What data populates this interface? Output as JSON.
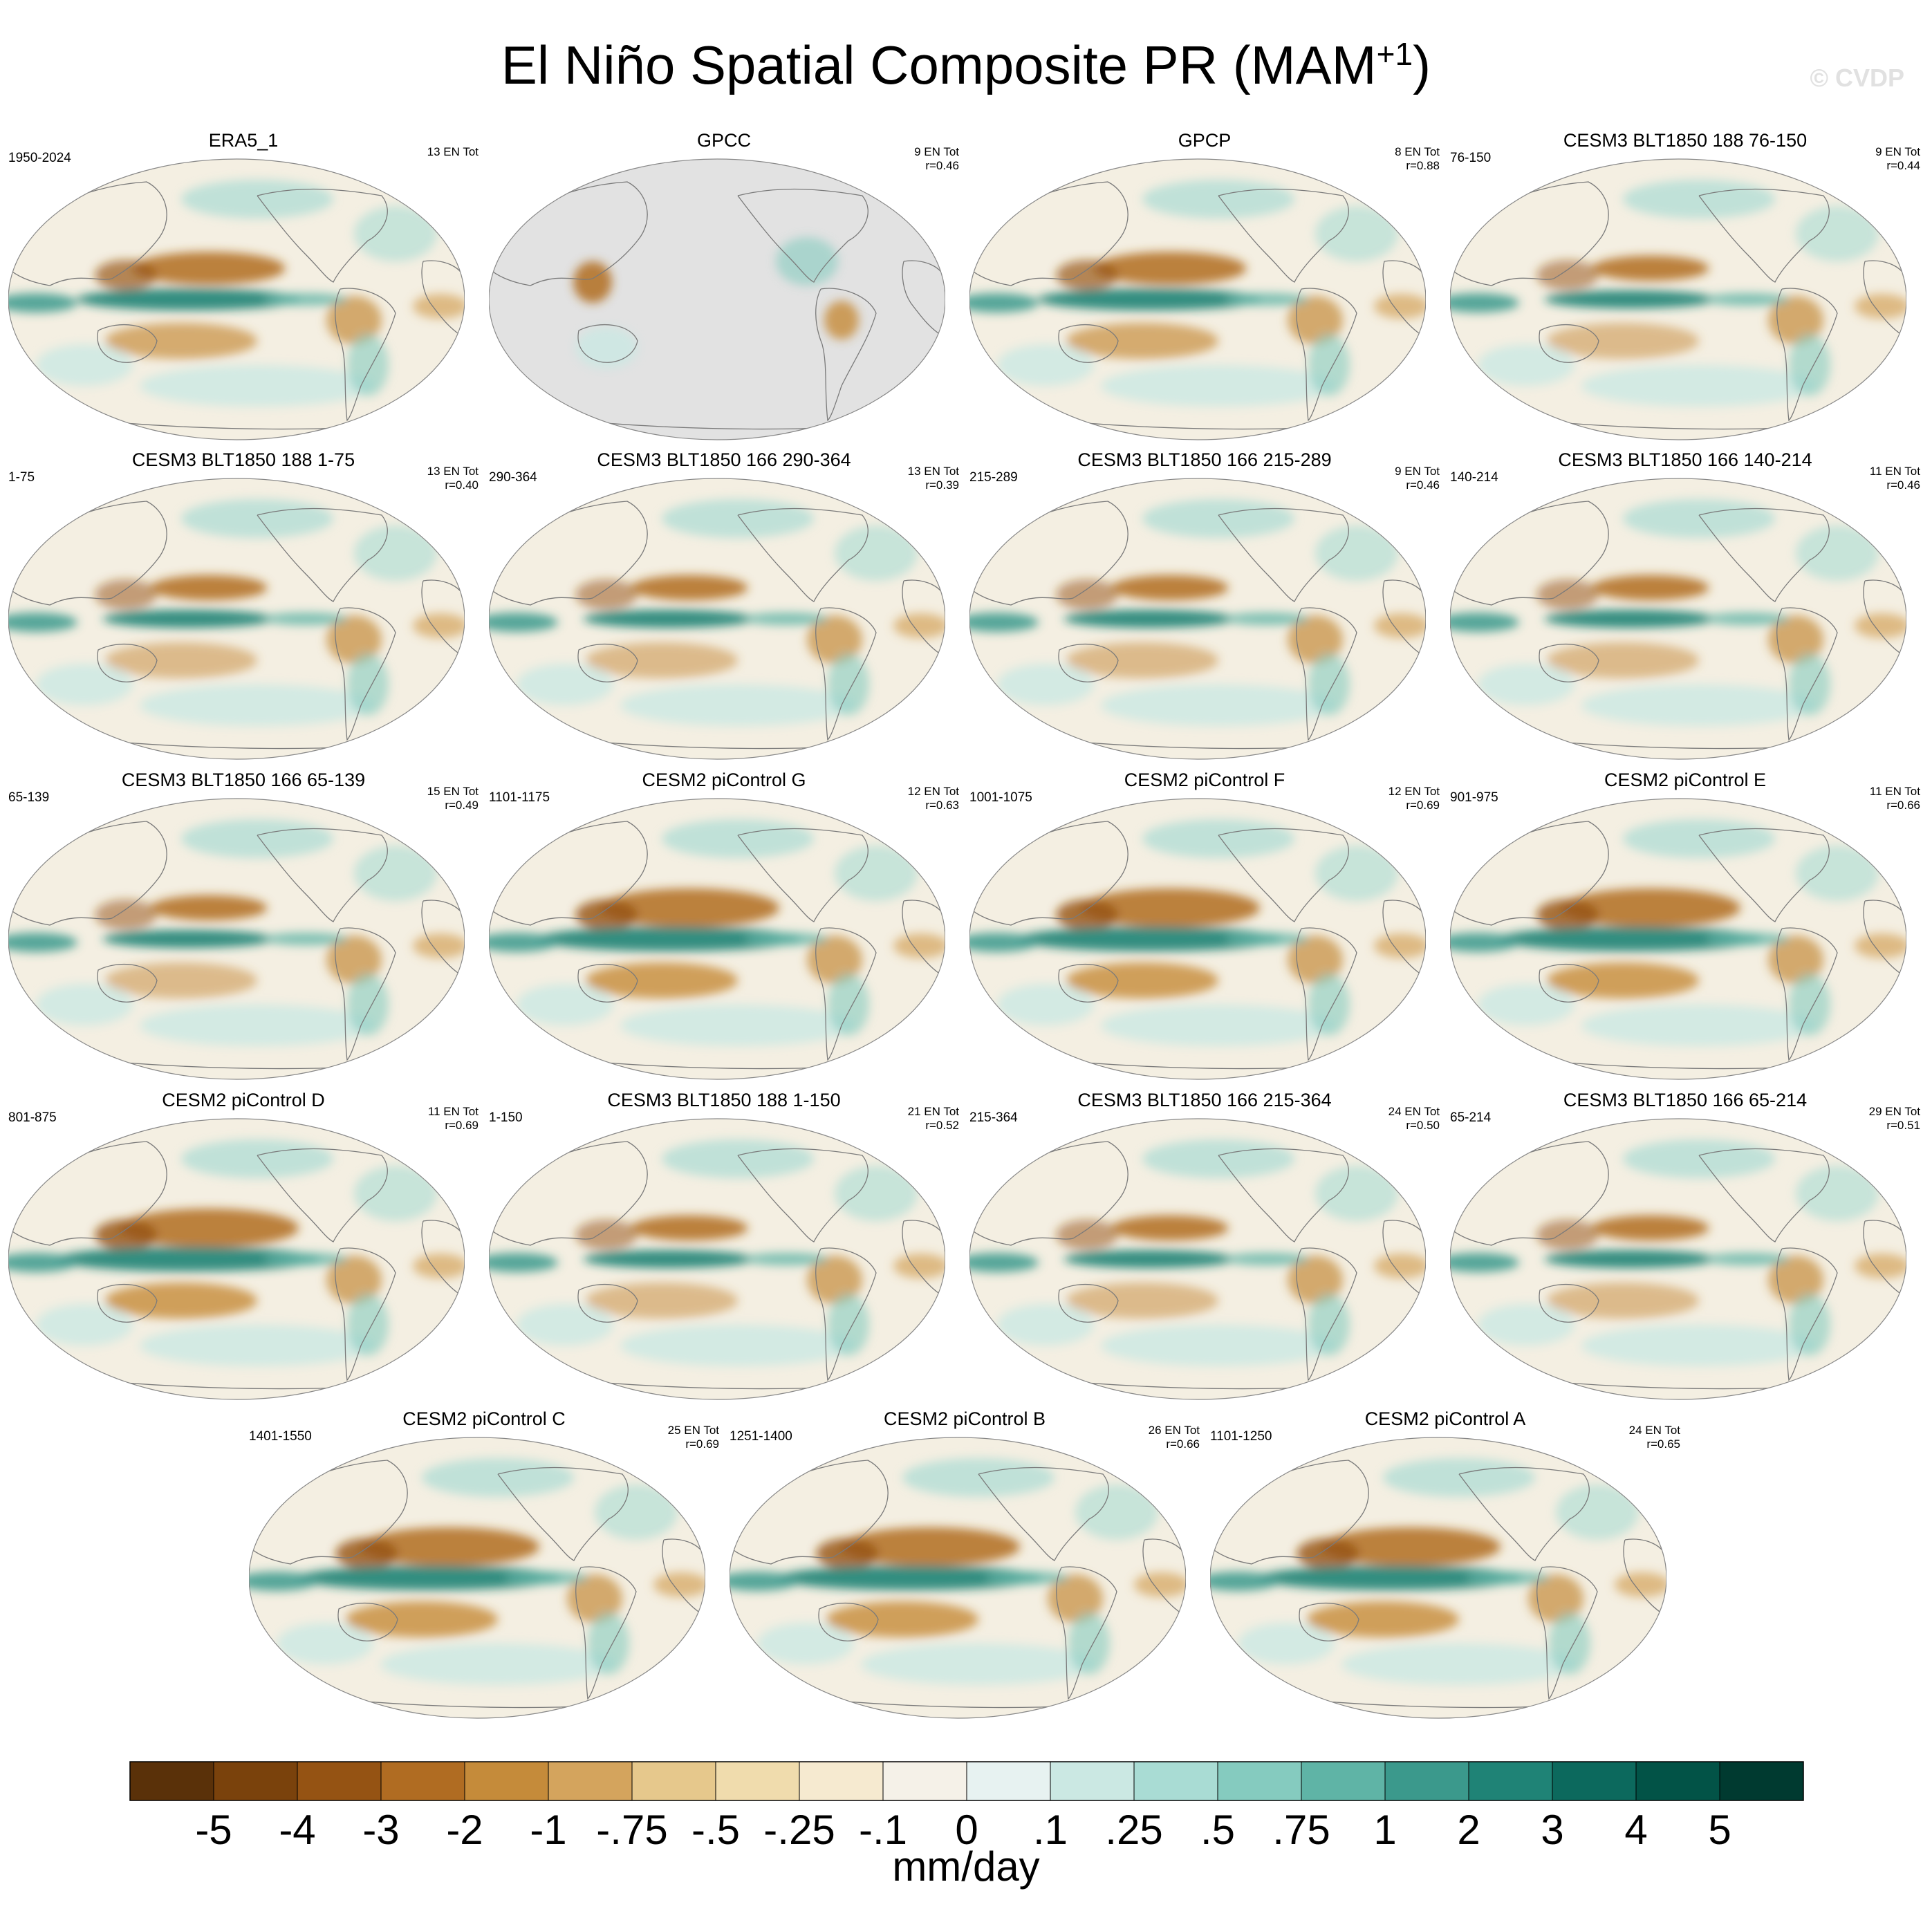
{
  "title": "El Niño Spatial Composite PR (MAM",
  "title_sup": "+1",
  "title_close": ")",
  "watermark": "© CVDP",
  "colors": {
    "map_ocean_base": "#f4efe2",
    "land_mask_gray": "#e2e2e2",
    "coast": "#7a7a7a",
    "wet": "#3e9b8f",
    "dry": "#b8803c"
  },
  "chart_data": {
    "type": "heatmap",
    "variable": "PR",
    "season": "MAM+1",
    "projection": "Robinson (Pacific-centered)",
    "panels": [
      {
        "title": "ERA5_1",
        "years": "1950-2024",
        "n_events": "13 EN Tot",
        "pattern_corr": "",
        "style": "obs"
      },
      {
        "title": "GPCC",
        "years": "",
        "n_events": "9 EN Tot",
        "pattern_corr": "r=0.46",
        "style": "land"
      },
      {
        "title": "GPCP",
        "years": "",
        "n_events": "8 EN Tot",
        "pattern_corr": "r=0.88",
        "style": "obs"
      },
      {
        "title": "CESM3 BLT1850 188 76-150",
        "years": "76-150",
        "n_events": "9 EN Tot",
        "pattern_corr": "r=0.44",
        "style": "weak"
      },
      {
        "title": "CESM3 BLT1850 188 1-75",
        "years": "1-75",
        "n_events": "13 EN Tot",
        "pattern_corr": "r=0.40",
        "style": "weak"
      },
      {
        "title": "CESM3 BLT1850 166 290-364",
        "years": "290-364",
        "n_events": "13 EN Tot",
        "pattern_corr": "r=0.39",
        "style": "weak"
      },
      {
        "title": "CESM3 BLT1850 166 215-289",
        "years": "215-289",
        "n_events": "9 EN Tot",
        "pattern_corr": "r=0.46",
        "style": "weak"
      },
      {
        "title": "CESM3 BLT1850 166 140-214",
        "years": "140-214",
        "n_events": "11 EN Tot",
        "pattern_corr": "r=0.46",
        "style": "weak"
      },
      {
        "title": "CESM3 BLT1850 166 65-139",
        "years": "65-139",
        "n_events": "15 EN Tot",
        "pattern_corr": "r=0.49",
        "style": "weak"
      },
      {
        "title": "CESM2 piControl G",
        "years": "1101-1175",
        "n_events": "12 EN Tot",
        "pattern_corr": "r=0.63",
        "style": "strong"
      },
      {
        "title": "CESM2 piControl F",
        "years": "1001-1075",
        "n_events": "12 EN Tot",
        "pattern_corr": "r=0.69",
        "style": "strong"
      },
      {
        "title": "CESM2 piControl E",
        "years": "901-975",
        "n_events": "11 EN Tot",
        "pattern_corr": "r=0.66",
        "style": "strong"
      },
      {
        "title": "CESM2 piControl D",
        "years": "801-875",
        "n_events": "11 EN Tot",
        "pattern_corr": "r=0.69",
        "style": "strong"
      },
      {
        "title": "CESM3 BLT1850 188 1-150",
        "years": "1-150",
        "n_events": "21 EN Tot",
        "pattern_corr": "r=0.52",
        "style": "weak"
      },
      {
        "title": "CESM3 BLT1850 166 215-364",
        "years": "215-364",
        "n_events": "24 EN Tot",
        "pattern_corr": "r=0.50",
        "style": "weak"
      },
      {
        "title": "CESM3 BLT1850 166 65-214",
        "years": "65-214",
        "n_events": "29 EN Tot",
        "pattern_corr": "r=0.51",
        "style": "weak"
      },
      {
        "title": "CESM2 piControl C",
        "years": "1401-1550",
        "n_events": "25 EN Tot",
        "pattern_corr": "r=0.69",
        "style": "strong"
      },
      {
        "title": "CESM2 piControl B",
        "years": "1251-1400",
        "n_events": "26 EN Tot",
        "pattern_corr": "r=0.66",
        "style": "strong"
      },
      {
        "title": "CESM2 piControl A",
        "years": "1101-1250",
        "n_events": "24 EN Tot",
        "pattern_corr": "r=0.65",
        "style": "strong"
      }
    ],
    "colorbar": {
      "units": "mm/day",
      "tick_labels": [
        "-5",
        "-4",
        "-3",
        "-2",
        "-1",
        "-.75",
        "-.5",
        "-.25",
        "-.1",
        "0",
        ".1",
        ".25",
        ".5",
        ".75",
        "1",
        "2",
        "3",
        "4",
        "5"
      ],
      "colors": [
        "#5a3109",
        "#7a420c",
        "#955313",
        "#b06c22",
        "#c58b3a",
        "#d4a45d",
        "#e6c88c",
        "#f0dcad",
        "#f6ead0",
        "#f5f1e8",
        "#e7f2f1",
        "#cbe8e3",
        "#a9dcd4",
        "#85cbbf",
        "#5fb4a6",
        "#3b998c",
        "#1f8376",
        "#0c695d",
        "#025347",
        "#003a30"
      ]
    }
  }
}
